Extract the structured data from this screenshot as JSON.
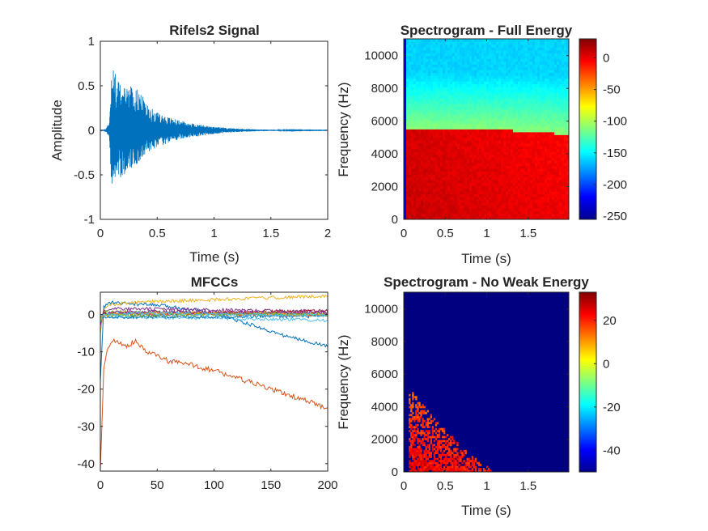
{
  "figure_background": "#ffffff",
  "chart_data": [
    {
      "type": "line",
      "title": "Rifels2 Signal",
      "xlabel": "Time (s)",
      "ylabel": "Amplitude",
      "xlim": [
        0,
        2
      ],
      "ylim": [
        -1,
        1
      ],
      "xticks": [
        0,
        0.5,
        1,
        1.5,
        2
      ],
      "xtick_labels": [
        "0",
        "0.5",
        "1",
        "1.5",
        "2"
      ],
      "yticks": [
        -1,
        -0.5,
        0,
        0.5,
        1
      ],
      "ytick_labels": [
        "-1",
        "-0.5",
        "0",
        "0.5",
        "1"
      ],
      "series": [
        {
          "color": "#0072BD",
          "description_envelope": {
            "time": [
              0.0,
              0.05,
              0.08,
              0.1,
              0.15,
              0.2,
              0.25,
              0.3,
              0.35,
              0.4,
              0.5,
              0.6,
              0.7,
              0.8,
              0.9,
              1.0,
              1.1,
              1.2,
              1.3,
              1.4,
              1.5,
              1.6,
              1.8,
              2.0
            ],
            "upper": [
              0.0,
              0.02,
              0.12,
              0.73,
              0.62,
              0.45,
              0.55,
              0.48,
              0.45,
              0.3,
              0.2,
              0.15,
              0.11,
              0.08,
              0.06,
              0.04,
              0.03,
              0.02,
              0.015,
              0.01,
              0.008,
              0.005,
              0.003,
              0.002
            ],
            "lower": [
              0.0,
              -0.02,
              -0.1,
              -0.68,
              -0.55,
              -0.52,
              -0.45,
              -0.4,
              -0.35,
              -0.25,
              -0.2,
              -0.14,
              -0.1,
              -0.08,
              -0.06,
              -0.04,
              -0.03,
              -0.02,
              -0.015,
              -0.01,
              -0.008,
              -0.005,
              -0.003,
              -0.002
            ]
          }
        }
      ]
    },
    {
      "type": "heatmap",
      "title": "Spectrogram - Full Energy",
      "xlabel": "Time (s)",
      "ylabel": "Frequency (Hz)",
      "xlim": [
        0,
        1.99
      ],
      "ylim": [
        0,
        11025
      ],
      "xticks": [
        0,
        0.5,
        1,
        1.5
      ],
      "xtick_labels": [
        "0",
        "0.5",
        "1",
        "1.5"
      ],
      "yticks": [
        0,
        2000,
        4000,
        6000,
        8000,
        10000
      ],
      "ytick_labels": [
        "0",
        "2000",
        "4000",
        "6000",
        "8000",
        "10000"
      ],
      "colormap": "jet",
      "clim": [
        -255,
        30
      ],
      "colorbar_ticks": [
        -250,
        -200,
        -150,
        -100,
        -50,
        0
      ],
      "colorbar_tick_labels": [
        "-250",
        "-200",
        "-150",
        "-100",
        "-50",
        "0"
      ],
      "approx_levels_db": {
        "below_cutoff": 10,
        "just_above_cutoff": -110,
        "top_band": -160,
        "cutoff_hz_start": 5500,
        "cutoff_hz_end": 5200
      }
    },
    {
      "type": "line",
      "title": "MFCCs",
      "xlabel": "",
      "ylabel": "",
      "xlim": [
        0,
        200
      ],
      "ylim": [
        -42,
        6
      ],
      "xticks": [
        0,
        50,
        100,
        150,
        200
      ],
      "xtick_labels": [
        "0",
        "50",
        "100",
        "150",
        "200"
      ],
      "yticks": [
        -40,
        -30,
        -20,
        -10,
        0
      ],
      "ytick_labels": [
        "-40",
        "-30",
        "-20",
        "-10",
        "0"
      ],
      "series": [
        {
          "color": "#0072BD",
          "x": [
            0,
            3,
            8,
            20,
            50,
            80,
            100,
            120,
            140,
            160,
            180,
            200
          ],
          "y": [
            -18,
            2,
            3.2,
            3,
            2.5,
            1.5,
            0.5,
            -1.5,
            -3.5,
            -5.5,
            -7,
            -8.5
          ]
        },
        {
          "color": "#D95319",
          "x": [
            0,
            3,
            6,
            10,
            15,
            20,
            25,
            30,
            40,
            50,
            60,
            80,
            100,
            120,
            140,
            160,
            180,
            190,
            200
          ],
          "y": [
            -42,
            -15,
            -9,
            -7,
            -7.5,
            -8,
            -8.5,
            -7,
            -10,
            -11,
            -12.5,
            -13.5,
            -15,
            -17,
            -19,
            -21,
            -23,
            -24,
            -25.5
          ]
        },
        {
          "color": "#EDB120",
          "x": [
            0,
            3,
            8,
            20,
            50,
            100,
            150,
            200
          ],
          "y": [
            -5,
            1.5,
            2.5,
            3,
            3.5,
            4,
            4.5,
            5
          ]
        },
        {
          "color": "#7E2F8E",
          "x": [
            0,
            3,
            10,
            50,
            100,
            150,
            200
          ],
          "y": [
            -3,
            1,
            1.5,
            1.5,
            1.2,
            1,
            0.8
          ]
        },
        {
          "color": "#77AC30",
          "x": [
            0,
            3,
            10,
            50,
            100,
            150,
            200
          ],
          "y": [
            -2,
            0.5,
            0.8,
            0.5,
            0.3,
            0.2,
            0
          ]
        },
        {
          "color": "#4DBEEE",
          "x": [
            0,
            3,
            10,
            50,
            100,
            150,
            200
          ],
          "y": [
            -2,
            0,
            -0.5,
            -0.8,
            -1,
            -1.2,
            -1.5
          ]
        },
        {
          "color": "#A2142F",
          "x": [
            0,
            3,
            10,
            50,
            100,
            150,
            200
          ],
          "y": [
            -1,
            0.5,
            0.2,
            0,
            0.5,
            0.8,
            1
          ]
        },
        {
          "color": "#0072BD",
          "x": [
            0,
            3,
            10,
            50,
            100,
            150,
            200
          ],
          "y": [
            -1,
            -0.5,
            -0.8,
            -0.5,
            -0.6,
            -0.4,
            -0.5
          ]
        },
        {
          "color": "#D95319",
          "x": [
            0,
            3,
            10,
            50,
            100,
            150,
            200
          ],
          "y": [
            -1,
            0,
            0.3,
            0.5,
            0.2,
            0,
            -0.3
          ]
        },
        {
          "color": "#EDB120",
          "x": [
            0,
            3,
            10,
            50,
            100,
            150,
            200
          ],
          "y": [
            -1,
            -0.3,
            0,
            0.3,
            0.5,
            0.3,
            0.2
          ]
        },
        {
          "color": "#7E2F8E",
          "x": [
            0,
            3,
            10,
            50,
            100,
            150,
            200
          ],
          "y": [
            -0.5,
            0.2,
            0.5,
            0.8,
            0.6,
            0.4,
            0.5
          ]
        },
        {
          "color": "#77AC30",
          "x": [
            0,
            3,
            10,
            50,
            100,
            150,
            200
          ],
          "y": [
            -0.5,
            -0.2,
            0,
            -0.2,
            0,
            0.2,
            0
          ]
        },
        {
          "color": "#4DBEEE",
          "x": [
            0,
            3,
            10,
            50,
            100,
            150,
            200
          ],
          "y": [
            -0.5,
            0,
            0.2,
            0.3,
            0.1,
            -0.1,
            -0.2
          ]
        }
      ]
    },
    {
      "type": "heatmap",
      "title": "Spectrogram - No Weak Energy",
      "xlabel": "Time (s)",
      "ylabel": "Frequency (Hz)",
      "xlim": [
        0,
        1.99
      ],
      "ylim": [
        0,
        11025
      ],
      "xticks": [
        0,
        0.5,
        1,
        1.5
      ],
      "xtick_labels": [
        "0",
        "0.5",
        "1",
        "1.5"
      ],
      "yticks": [
        0,
        2000,
        4000,
        6000,
        8000,
        10000
      ],
      "ytick_labels": [
        "0",
        "2000",
        "4000",
        "6000",
        "8000",
        "10000"
      ],
      "colormap": "jet",
      "clim": [
        -50,
        33
      ],
      "colorbar_ticks": [
        -40,
        -20,
        0,
        20
      ],
      "colorbar_tick_labels": [
        "-40",
        "-20",
        "0",
        "20"
      ],
      "approx_levels_db": {
        "background": -50,
        "active_region_time_s": [
          0.05,
          1.15
        ],
        "active_region_max_hz": 5300,
        "active_level_range": [
          10,
          30
        ]
      }
    }
  ]
}
